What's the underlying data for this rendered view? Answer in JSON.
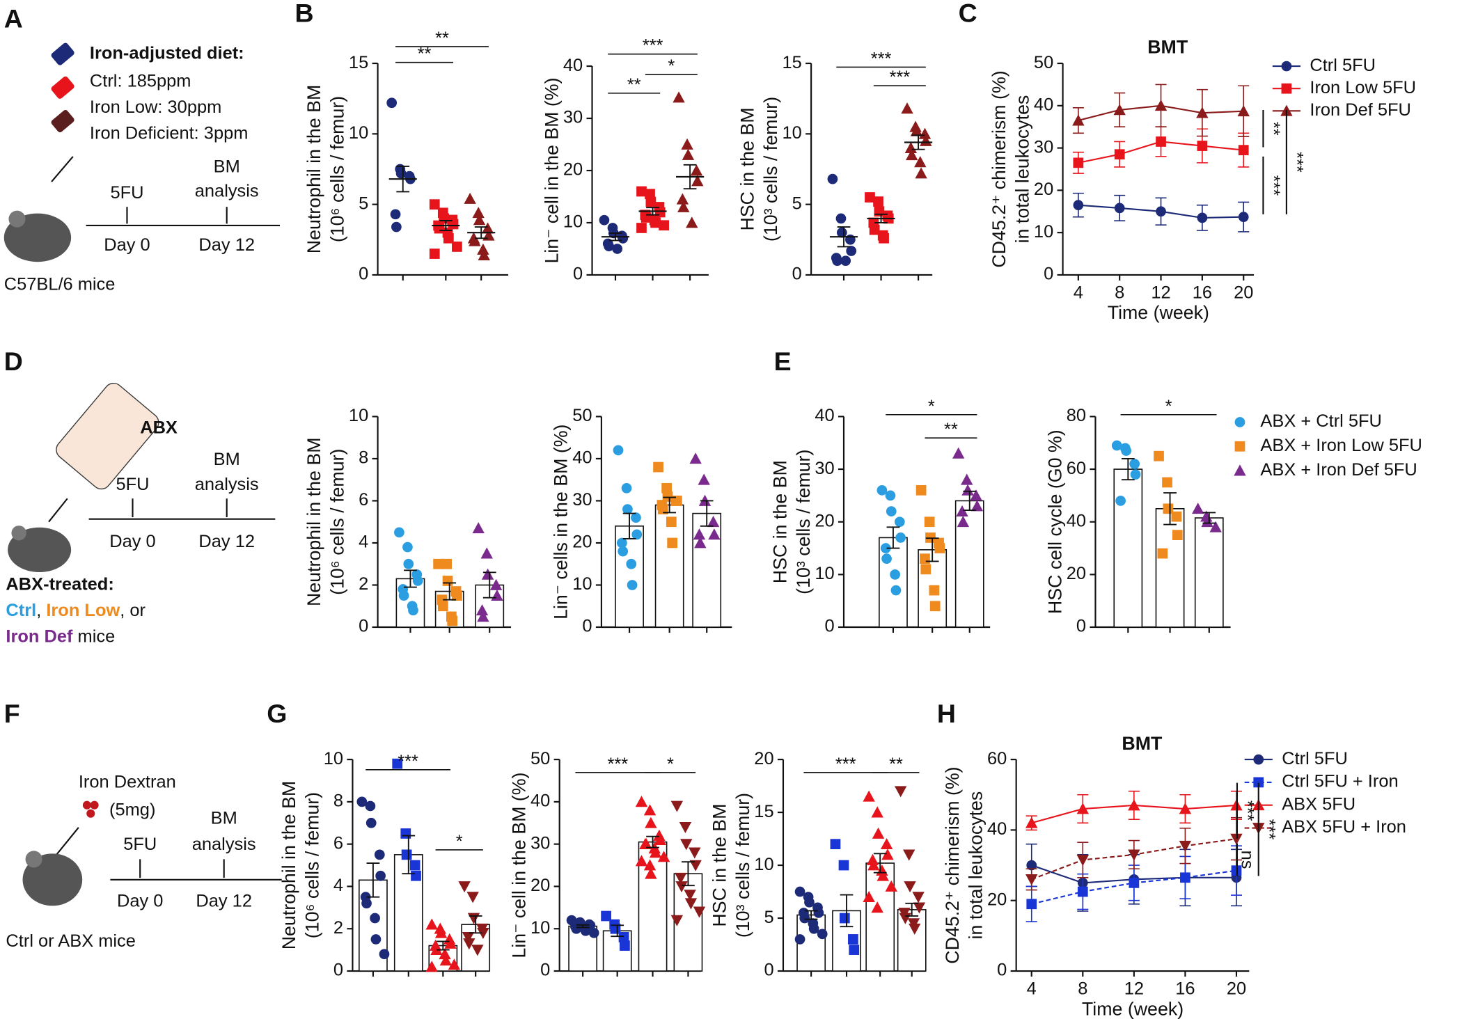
{
  "panel_labels": [
    "A",
    "B",
    "C",
    "D",
    "E",
    "F",
    "G",
    "H"
  ],
  "schematic_A": {
    "diet_title": "Iron-adjusted diet:",
    "diets": [
      "Ctrl: 185ppm",
      "Iron Low: 30ppm",
      "Iron Deficient: 3ppm"
    ],
    "treatment": "5FU",
    "analysis": [
      "BM",
      "analysis"
    ],
    "days": [
      "Day 0",
      "Day 12"
    ],
    "mice": "C57BL/6 mice"
  },
  "schematic_D": {
    "label": "ABX",
    "treatment": "5FU",
    "analysis": [
      "BM",
      "analysis"
    ],
    "days": [
      "Day 0",
      "Day 12"
    ],
    "caption_title": "ABX-treated:",
    "caption_line1": [
      "Ctrl",
      ", ",
      "Iron Low",
      ", or"
    ],
    "caption_line2": [
      "Iron Def",
      " mice"
    ]
  },
  "schematic_F": {
    "reagent": [
      "Iron Dextran",
      "(5mg)"
    ],
    "treatment": "5FU",
    "analysis": [
      "BM",
      "analysis"
    ],
    "days": [
      "Day 0",
      "Day 12"
    ],
    "mice": "Ctrl or ABX mice"
  },
  "chart_data": [
    {
      "type": "dotplot",
      "ylabel": [
        "Neutrophil in the BM",
        "(10⁶ cells / femur)"
      ],
      "ylim": [
        0,
        15
      ],
      "yticks": [
        0,
        5,
        10,
        15
      ],
      "groups": [
        {
          "color": "#1c2a78",
          "marker": "circle",
          "values": [
            12.2,
            7.5,
            7.2,
            7.0,
            6.8,
            4.3,
            3.4
          ],
          "mean": 6.8,
          "sem": 0.9
        },
        {
          "color": "#e8141c",
          "marker": "square",
          "values": [
            5.0,
            4.4,
            4.0,
            3.9,
            3.6,
            3.5,
            3.3,
            3.0,
            2.6,
            2.0,
            1.5
          ],
          "mean": 3.5,
          "sem": 0.35
        },
        {
          "color": "#8b1a1a",
          "marker": "triangle",
          "values": [
            5.4,
            4.4,
            3.9,
            3.3,
            2.8,
            2.6,
            2.4,
            1.8,
            1.4
          ],
          "mean": 3.0,
          "sem": 0.4
        }
      ],
      "significance": [
        "**",
        "**"
      ]
    },
    {
      "type": "dotplot",
      "ylabel": [
        "Lin⁻ cell in the BM (%)"
      ],
      "ylim": [
        0,
        40
      ],
      "yticks": [
        0,
        10,
        20,
        30,
        40
      ],
      "groups": [
        {
          "color": "#1c2a78",
          "marker": "circle",
          "values": [
            10.5,
            9,
            8,
            7.5,
            7,
            6,
            5.5,
            5
          ],
          "mean": 7.3,
          "sem": 0.7
        },
        {
          "color": "#e8141c",
          "marker": "square",
          "values": [
            16,
            15.5,
            14,
            13,
            12,
            11.5,
            11,
            10.5,
            10,
            9.5,
            9
          ],
          "mean": 12.2,
          "sem": 0.7
        },
        {
          "color": "#8b1a1a",
          "marker": "triangle",
          "values": [
            34,
            25,
            23,
            20,
            18,
            14.5,
            13,
            10
          ],
          "mean": 18.8,
          "sem": 2.3
        }
      ],
      "significance": [
        "***",
        "**",
        "*"
      ]
    },
    {
      "type": "dotplot",
      "ylabel": [
        "HSC in the BM",
        "(10³ cells / femur)"
      ],
      "ylim": [
        0,
        15
      ],
      "yticks": [
        0,
        5,
        10,
        15
      ],
      "groups": [
        {
          "color": "#1c2a78",
          "marker": "circle",
          "values": [
            6.8,
            4.0,
            3.0,
            2.5,
            1.7,
            1.2,
            1.0,
            1.0
          ],
          "mean": 2.7,
          "sem": 0.7
        },
        {
          "color": "#e8141c",
          "marker": "square",
          "values": [
            5.5,
            5.2,
            4.5,
            4.2,
            4.0,
            3.7,
            3.2,
            2.8,
            2.6
          ],
          "mean": 4.0,
          "sem": 0.3
        },
        {
          "color": "#8b1a1a",
          "marker": "triangle",
          "values": [
            11.8,
            10.5,
            10.2,
            10.0,
            9.5,
            9.0,
            8.5,
            8.0,
            7.2
          ],
          "mean": 9.4,
          "sem": 0.5
        }
      ],
      "significance": [
        "***",
        "***"
      ]
    },
    {
      "type": "line",
      "title": "BMT",
      "xlabel": "Time (week)",
      "ylabel": [
        "CD45.2⁺ chimerism (%)",
        "in total leukocytes"
      ],
      "x": [
        4,
        8,
        12,
        16,
        20
      ],
      "xlim": [
        2.5,
        21
      ],
      "xticks": [
        4,
        8,
        12,
        16,
        20
      ],
      "ylim": [
        0,
        50
      ],
      "yticks": [
        0,
        10,
        20,
        30,
        40,
        50
      ],
      "series": [
        {
          "name": "Ctrl 5FU",
          "color": "#1c2a78",
          "marker": "circle",
          "dashed": false,
          "values": [
            16.5,
            15.8,
            15,
            13.5,
            13.7
          ],
          "errors": [
            2.8,
            3,
            3.2,
            3,
            3.5
          ]
        },
        {
          "name": "Iron Low 5FU",
          "color": "#e8141c",
          "marker": "square",
          "dashed": false,
          "values": [
            26.5,
            28.5,
            31.5,
            30.5,
            29.5
          ],
          "errors": [
            2.5,
            3,
            3.5,
            4,
            4
          ]
        },
        {
          "name": "Iron Def 5FU",
          "color": "#8b1a1a",
          "marker": "triangle",
          "dashed": false,
          "values": [
            36.5,
            39,
            40,
            38.3,
            38.7
          ],
          "errors": [
            3,
            4,
            5,
            5.5,
            6
          ]
        }
      ],
      "significance": [
        "**",
        "***",
        "***"
      ]
    },
    {
      "type": "dotbar",
      "ylabel": [
        "Neutrophil in the BM",
        "(10⁶ cells / femur)"
      ],
      "ylim": [
        0,
        10
      ],
      "yticks": [
        0,
        2,
        4,
        6,
        8,
        10
      ],
      "groups": [
        {
          "color": "#2a9ee0",
          "marker": "circle",
          "values": [
            4.5,
            3.8,
            3.0,
            2.5,
            2.2,
            1.8,
            1.5,
            1.0,
            0.8
          ],
          "mean": 2.3,
          "sem": 0.4
        },
        {
          "color": "#ef8a1e",
          "marker": "square",
          "values": [
            3.0,
            3.0,
            2.2,
            1.7,
            1.5,
            1.3,
            1.0,
            0.5,
            0.3
          ],
          "mean": 1.7,
          "sem": 0.4
        },
        {
          "color": "#7a2a8c",
          "marker": "triangle",
          "values": [
            4.7,
            3.5,
            2.5,
            2.0,
            1.5,
            0.8,
            0.5
          ],
          "mean": 2.0,
          "sem": 0.6
        }
      ],
      "significance": []
    },
    {
      "type": "dotbar",
      "ylabel": [
        "Lin⁻ cells in the BM (%)"
      ],
      "ylim": [
        0,
        50
      ],
      "yticks": [
        0,
        10,
        20,
        30,
        40,
        50
      ],
      "groups": [
        {
          "color": "#2a9ee0",
          "marker": "circle",
          "values": [
            42,
            33,
            28,
            26,
            22,
            20,
            18,
            15,
            10
          ],
          "mean": 24,
          "sem": 3
        },
        {
          "color": "#ef8a1e",
          "marker": "square",
          "values": [
            38,
            33,
            31,
            30,
            30,
            29,
            28,
            25,
            20
          ],
          "mean": 29,
          "sem": 1.8
        },
        {
          "color": "#7a2a8c",
          "marker": "triangle",
          "values": [
            40,
            35,
            30,
            25,
            22,
            22,
            20
          ],
          "mean": 27,
          "sem": 3
        }
      ],
      "significance": []
    },
    {
      "type": "dotbar",
      "ylabel": [
        "HSC in the BM",
        "(10³ cells / femur)"
      ],
      "ylim": [
        0,
        40
      ],
      "yticks": [
        0,
        10,
        20,
        30,
        40
      ],
      "groups": [
        {
          "color": "#2a9ee0",
          "marker": "circle",
          "values": [
            26,
            25,
            22,
            20,
            17,
            15,
            13,
            10,
            7
          ],
          "mean": 17,
          "sem": 2
        },
        {
          "color": "#ef8a1e",
          "marker": "square",
          "values": [
            26,
            20,
            17,
            16,
            15,
            13,
            11,
            7,
            4
          ],
          "mean": 14.7,
          "sem": 2.2
        },
        {
          "color": "#7a2a8c",
          "marker": "triangle",
          "values": [
            33,
            28,
            26,
            25,
            23,
            22,
            20
          ],
          "mean": 24,
          "sem": 1.8
        }
      ],
      "significance": [
        "*",
        "**"
      ]
    },
    {
      "type": "dotbar",
      "ylabel": [
        "HSC cell cycle (G0 %)"
      ],
      "ylim": [
        0,
        80
      ],
      "yticks": [
        0,
        20,
        40,
        60,
        80
      ],
      "groups": [
        {
          "name": "ABX + Ctrl 5FU",
          "color": "#2a9ee0",
          "marker": "circle",
          "values": [
            69,
            68,
            67,
            62,
            58,
            48
          ],
          "mean": 60,
          "sem": 4
        },
        {
          "name": "ABX + Iron Low 5FU",
          "color": "#ef8a1e",
          "marker": "square",
          "values": [
            65,
            55,
            45,
            42,
            35,
            28
          ],
          "mean": 45,
          "sem": 6
        },
        {
          "name": "ABX + Iron Def 5FU",
          "color": "#7a2a8c",
          "marker": "triangle",
          "values": [
            45,
            42,
            40,
            38
          ],
          "mean": 41.5,
          "sem": 2
        }
      ],
      "significance": [
        "*"
      ]
    },
    {
      "type": "dotbar",
      "ylabel": [
        "Neutrophil in the BM",
        "(10⁶ cells / femur)"
      ],
      "ylim": [
        0,
        10
      ],
      "yticks": [
        0,
        2,
        4,
        6,
        8,
        10
      ],
      "groups": [
        {
          "color": "#1c2a78",
          "marker": "circle",
          "values": [
            8.0,
            7.8,
            7.0,
            5.5,
            4.5,
            3.5,
            3.2,
            2.5,
            1.5,
            0.8
          ],
          "mean": 4.3,
          "sem": 0.8
        },
        {
          "color": "#1a35d6",
          "marker": "square",
          "values": [
            9.8,
            6.5,
            5.5,
            5.0,
            4.5
          ],
          "mean": 5.5,
          "sem": 0.9
        },
        {
          "color": "#e8141c",
          "marker": "triangle",
          "values": [
            2.2,
            2.0,
            1.8,
            1.5,
            1.3,
            1.2,
            1.0,
            0.8,
            0.5,
            0.3,
            0.2
          ],
          "mean": 1.2,
          "sem": 0.2
        },
        {
          "color": "#8b1a1a",
          "marker": "triangle-down",
          "values": [
            4.0,
            3.5,
            2.5,
            2.0,
            1.8,
            1.6,
            1.3,
            1.0
          ],
          "mean": 2.2,
          "sem": 0.4
        }
      ],
      "significance": [
        "***",
        "*"
      ]
    },
    {
      "type": "dotbar",
      "ylabel": [
        "Lin⁻ cell in the BM (%)"
      ],
      "ylim": [
        0,
        50
      ],
      "yticks": [
        0,
        10,
        20,
        30,
        40,
        50
      ],
      "groups": [
        {
          "color": "#1c2a78",
          "marker": "circle",
          "values": [
            12,
            11.5,
            11,
            11,
            10.8,
            10.5,
            10,
            10,
            9.5,
            9
          ],
          "mean": 10.6,
          "sem": 0.3
        },
        {
          "color": "#1a35d6",
          "marker": "square",
          "values": [
            13,
            11,
            10,
            8,
            6
          ],
          "mean": 9.5,
          "sem": 1.3
        },
        {
          "color": "#e8141c",
          "marker": "triangle",
          "values": [
            40,
            38,
            35,
            32,
            31,
            30,
            30,
            29,
            28,
            27,
            26,
            25,
            23
          ],
          "mean": 30.5,
          "sem": 1.3
        },
        {
          "color": "#8b1a1a",
          "marker": "triangle-down",
          "values": [
            39,
            34,
            30,
            28,
            25,
            22,
            20,
            18,
            16,
            14,
            12
          ],
          "mean": 23,
          "sem": 2.8
        }
      ],
      "significance": [
        "***",
        "*"
      ]
    },
    {
      "type": "dotbar",
      "ylabel": [
        "HSC in the BM",
        "(10³ cells / femur)"
      ],
      "ylim": [
        0,
        20
      ],
      "yticks": [
        0,
        5,
        10,
        15,
        20
      ],
      "groups": [
        {
          "color": "#1c2a78",
          "marker": "circle",
          "values": [
            7.5,
            7,
            6.5,
            6,
            5.5,
            5.5,
            5,
            4.5,
            4,
            3.5,
            3
          ],
          "mean": 5.3,
          "sem": 0.4
        },
        {
          "color": "#1a35d6",
          "marker": "square",
          "values": [
            12,
            10,
            5,
            3,
            2
          ],
          "mean": 5.7,
          "sem": 1.5
        },
        {
          "color": "#e8141c",
          "marker": "triangle",
          "values": [
            16.5,
            15,
            13,
            12,
            11,
            10.5,
            10,
            9.5,
            9,
            8,
            7,
            6
          ],
          "mean": 10.2,
          "sem": 0.9
        },
        {
          "color": "#8b1a1a",
          "marker": "triangle-down",
          "values": [
            17,
            11,
            8,
            7,
            6,
            5.5,
            5,
            4.5,
            4
          ],
          "mean": 5.8,
          "sem": 0.6
        }
      ],
      "significance": [
        "***",
        "**"
      ]
    },
    {
      "type": "line",
      "title": "BMT",
      "xlabel": "Time (week)",
      "ylabel": [
        "CD45.2⁺ chimerism (%)",
        "in total leukocytes"
      ],
      "x": [
        4,
        8,
        12,
        16,
        20
      ],
      "xlim": [
        2.8,
        21
      ],
      "xticks": [
        4,
        8,
        12,
        16,
        20
      ],
      "ylim": [
        0,
        60
      ],
      "yticks": [
        0,
        20,
        40,
        60
      ],
      "series": [
        {
          "name": "Ctrl 5FU",
          "color": "#1c2a78",
          "marker": "circle",
          "dashed": false,
          "values": [
            30,
            25,
            26,
            26.5,
            26.5
          ],
          "errors": [
            6,
            8,
            7,
            8,
            8
          ]
        },
        {
          "name": "Ctrl 5FU + Iron",
          "color": "#1a35d6",
          "marker": "square",
          "dashed": true,
          "values": [
            19,
            22.5,
            25,
            26.5,
            28.5
          ],
          "errors": [
            5,
            5,
            5,
            6,
            7
          ]
        },
        {
          "name": "ABX 5FU",
          "color": "#e8141c",
          "marker": "triangle",
          "dashed": false,
          "values": [
            42,
            46,
            47,
            46,
            47
          ],
          "errors": [
            2,
            4,
            4,
            4,
            4
          ]
        },
        {
          "name": "ABX 5FU + Iron",
          "color": "#8b1a1a",
          "marker": "triangle-down",
          "dashed": true,
          "values": [
            26,
            31.5,
            33,
            35.5,
            37.5
          ],
          "errors": [
            3,
            5,
            4,
            5,
            6
          ]
        }
      ],
      "significance": [
        "***",
        "ns",
        "***"
      ]
    }
  ]
}
